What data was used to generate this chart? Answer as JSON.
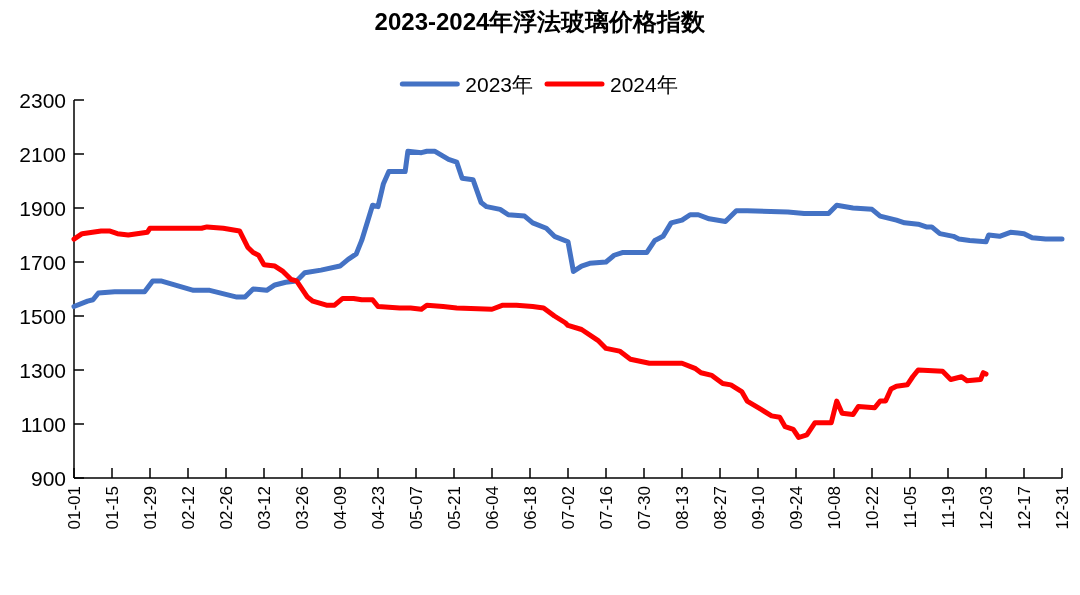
{
  "chart_data": {
    "type": "line",
    "title": "2023-2024年浮法玻璃价格指数",
    "xlim": [
      "--01-01",
      "--12-31"
    ],
    "xticks": [
      {
        "value": "--01-01",
        "label": "01-01"
      },
      {
        "value": "--01-15",
        "label": "01-15"
      },
      {
        "value": "--01-29",
        "label": "01-29"
      },
      {
        "value": "--02-12",
        "label": "02-12"
      },
      {
        "value": "--02-26",
        "label": "02-26"
      },
      {
        "value": "--03-12",
        "label": "03-12"
      },
      {
        "value": "--03-26",
        "label": "03-26"
      },
      {
        "value": "--04-09",
        "label": "04-09"
      },
      {
        "value": "--04-23",
        "label": "04-23"
      },
      {
        "value": "--05-07",
        "label": "05-07"
      },
      {
        "value": "--05-21",
        "label": "05-21"
      },
      {
        "value": "--06-04",
        "label": "06-04"
      },
      {
        "value": "--06-18",
        "label": "06-18"
      },
      {
        "value": "--07-02",
        "label": "07-02"
      },
      {
        "value": "--07-16",
        "label": "07-16"
      },
      {
        "value": "--07-30",
        "label": "07-30"
      },
      {
        "value": "--08-13",
        "label": "08-13"
      },
      {
        "value": "--08-27",
        "label": "08-27"
      },
      {
        "value": "--09-10",
        "label": "09-10"
      },
      {
        "value": "--09-24",
        "label": "09-24"
      },
      {
        "value": "--10-08",
        "label": "10-08"
      },
      {
        "value": "--10-22",
        "label": "10-22"
      },
      {
        "value": "--11-05",
        "label": "11-05"
      },
      {
        "value": "--11-19",
        "label": "11-19"
      },
      {
        "value": "--12-03",
        "label": "12-03"
      },
      {
        "value": "--12-17",
        "label": "12-17"
      },
      {
        "value": "--12-31",
        "label": "12-31"
      }
    ],
    "ylim": [
      900,
      2300
    ],
    "yticks": [
      900,
      1100,
      1300,
      1500,
      1700,
      1900,
      2100,
      2300
    ],
    "legend": "top",
    "series": [
      {
        "name": "2023年",
        "color": "#4472c4",
        "x": [
          "--01-01",
          "--01-06",
          "--01-08",
          "--01-10",
          "--01-16",
          "--01-27",
          "--01-30",
          "--02-02",
          "--02-14",
          "--02-20",
          "--03-02",
          "--03-05",
          "--03-08",
          "--03-13",
          "--03-16",
          "--03-20",
          "--03-24",
          "--03-27",
          "--04-02",
          "--04-09",
          "--04-12",
          "--04-15",
          "--04-17",
          "--04-21",
          "--04-23",
          "--04-25",
          "--04-27",
          "--05-03",
          "--05-04",
          "--05-09",
          "--05-11",
          "--05-14",
          "--05-19",
          "--05-22",
          "--05-24",
          "--05-28",
          "--05-31",
          "--06-02",
          "--06-07",
          "--06-10",
          "--06-16",
          "--06-19",
          "--06-24",
          "--06-27",
          "--07-02",
          "--07-04",
          "--07-07",
          "--07-10",
          "--07-16",
          "--07-19",
          "--07-22",
          "--07-31",
          "--08-03",
          "--08-06",
          "--08-09",
          "--08-13",
          "--08-16",
          "--08-19",
          "--08-23",
          "--08-29",
          "--09-02",
          "--09-06",
          "--09-21",
          "--09-27",
          "--10-06",
          "--10-09",
          "--10-15",
          "--10-22",
          "--10-25",
          "--10-31",
          "--11-03",
          "--11-08",
          "--11-11",
          "--11-13",
          "--11-16",
          "--11-21",
          "--11-23",
          "--11-27",
          "--12-03",
          "--12-04",
          "--12-08",
          "--12-12",
          "--12-17",
          "--12-20",
          "--12-25",
          "--12-31"
        ],
        "values": [
          1535,
          1555,
          1560,
          1585,
          1590,
          1590,
          1630,
          1630,
          1595,
          1595,
          1570,
          1570,
          1600,
          1595,
          1615,
          1625,
          1630,
          1660,
          1670,
          1685,
          1710,
          1730,
          1780,
          1910,
          1905,
          1990,
          2035,
          2035,
          2110,
          2105,
          2110,
          2110,
          2080,
          2070,
          2010,
          2005,
          1920,
          1905,
          1895,
          1875,
          1870,
          1845,
          1825,
          1795,
          1775,
          1665,
          1685,
          1695,
          1700,
          1725,
          1735,
          1735,
          1780,
          1795,
          1845,
          1855,
          1875,
          1875,
          1860,
          1850,
          1890,
          1890,
          1885,
          1880,
          1880,
          1910,
          1900,
          1895,
          1870,
          1855,
          1845,
          1840,
          1830,
          1830,
          1805,
          1795,
          1785,
          1780,
          1775,
          1800,
          1795,
          1810,
          1805,
          1790,
          1785,
          1785
        ]
      },
      {
        "name": "2024年",
        "color": "#ff0000",
        "x": [
          "--01-01",
          "--01-04",
          "--01-11",
          "--01-14",
          "--01-17",
          "--01-21",
          "--01-28",
          "--01-29",
          "--02-17",
          "--02-19",
          "--02-25",
          "--03-03",
          "--03-06",
          "--03-08",
          "--03-10",
          "--03-12",
          "--03-16",
          "--03-19",
          "--03-22",
          "--03-24",
          "--03-28",
          "--03-30",
          "--04-04",
          "--04-07",
          "--04-10",
          "--04-14",
          "--04-17",
          "--04-21",
          "--04-23",
          "--05-01",
          "--05-05",
          "--05-09",
          "--05-11",
          "--05-17",
          "--05-22",
          "--06-04",
          "--06-08",
          "--06-13",
          "--06-19",
          "--06-23",
          "--06-27",
          "--07-01",
          "--07-02",
          "--07-07",
          "--07-13",
          "--07-16",
          "--07-21",
          "--07-25",
          "--08-01",
          "--08-13",
          "--08-18",
          "--08-20",
          "--08-24",
          "--08-28",
          "--08-31",
          "--09-04",
          "--09-06",
          "--09-11",
          "--09-15",
          "--09-18",
          "--09-20",
          "--09-23",
          "--09-25",
          "--09-28",
          "--10-01",
          "--10-07",
          "--10-09",
          "--10-11",
          "--10-15",
          "--10-17",
          "--10-23",
          "--10-25",
          "--10-27",
          "--10-29",
          "--10-31",
          "--11-04",
          "--11-06",
          "--11-08",
          "--11-17",
          "--11-20",
          "--11-24",
          "--11-26",
          "--12-01",
          "--12-02",
          "--12-03"
        ],
        "values": [
          1785,
          1805,
          1815,
          1815,
          1805,
          1800,
          1810,
          1825,
          1825,
          1830,
          1825,
          1815,
          1755,
          1735,
          1725,
          1690,
          1685,
          1665,
          1635,
          1630,
          1570,
          1555,
          1540,
          1540,
          1565,
          1565,
          1560,
          1560,
          1535,
          1530,
          1530,
          1525,
          1540,
          1535,
          1530,
          1525,
          1540,
          1540,
          1535,
          1530,
          1500,
          1475,
          1465,
          1450,
          1410,
          1380,
          1370,
          1340,
          1325,
          1325,
          1305,
          1290,
          1280,
          1250,
          1245,
          1220,
          1185,
          1155,
          1130,
          1125,
          1090,
          1080,
          1050,
          1060,
          1105,
          1105,
          1185,
          1140,
          1135,
          1165,
          1160,
          1185,
          1185,
          1230,
          1240,
          1245,
          1275,
          1300,
          1295,
          1265,
          1275,
          1260,
          1265,
          1290,
          1285
        ]
      }
    ]
  }
}
